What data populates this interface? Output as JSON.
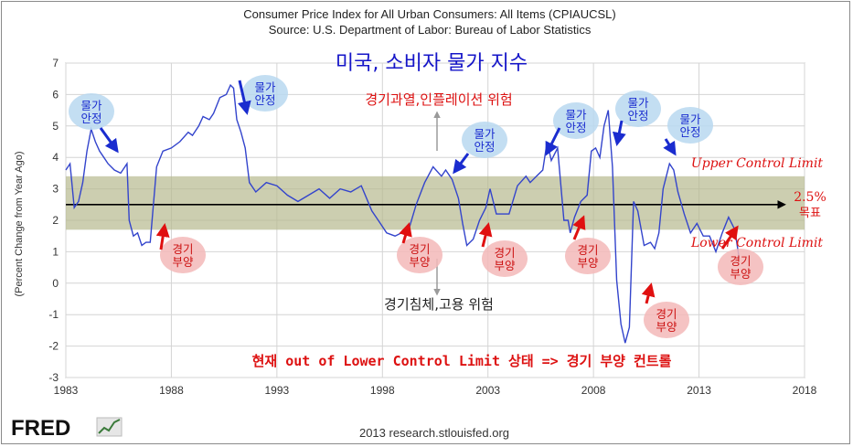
{
  "chart_data": {
    "type": "line",
    "title": "Consumer Price Index for All Urban Consumers: All Items (CPIAUCSL)",
    "subtitle": "Source: U.S. Department of Labor: Bureau of Labor Statistics",
    "ylabel": "(Percent Change from Year Ago)",
    "xlabel": "",
    "ylim": [
      -3,
      7
    ],
    "xlim": [
      1983,
      2018
    ],
    "yticks": [
      "-3",
      "-2",
      "-1",
      "0",
      "1",
      "2",
      "3",
      "4",
      "5",
      "6",
      "7"
    ],
    "xticks": [
      "1983",
      "1988",
      "1993",
      "1998",
      "2003",
      "2008",
      "2013",
      "2018"
    ],
    "grid": true,
    "line_color": "#3344cc",
    "band_color": "#b7b98f",
    "control_band": [
      1.7,
      3.4
    ],
    "target_value": 2.5,
    "series": [
      {
        "x": [
          1983.0,
          1983.2,
          1983.4,
          1983.6,
          1983.8,
          1984.0,
          1984.2,
          1984.4,
          1984.6,
          1984.8,
          1985.0,
          1985.3,
          1985.6,
          1985.9,
          1986.0,
          1986.2,
          1986.4,
          1986.6,
          1986.8,
          1987.0,
          1987.3,
          1987.6,
          1988.0,
          1988.4,
          1988.8,
          1989.0,
          1989.3,
          1989.5,
          1989.8,
          1990.0,
          1990.3,
          1990.6,
          1990.8,
          1990.95,
          1991.1,
          1991.3,
          1991.5,
          1991.7,
          1992.0,
          1992.5,
          1993.0,
          1993.5,
          1994.0,
          1994.5,
          1995.0,
          1995.5,
          1996.0,
          1996.5,
          1997.0,
          1997.5,
          1997.9,
          1998.2,
          1998.6,
          1998.9,
          1999.2,
          1999.6,
          2000.0,
          2000.4,
          2000.8,
          2001.0,
          2001.3,
          2001.6,
          2001.8,
          2002.0,
          2002.3,
          2002.6,
          2002.9,
          2003.1,
          2003.4,
          2003.7,
          2004.0,
          2004.4,
          2004.8,
          2005.0,
          2005.3,
          2005.6,
          2005.8,
          2006.0,
          2006.3,
          2006.6,
          2006.8,
          2006.9,
          2007.1,
          2007.4,
          2007.7,
          2007.9,
          2008.1,
          2008.3,
          2008.5,
          2008.7,
          2008.9,
          2009.1,
          2009.3,
          2009.5,
          2009.7,
          2009.9,
          2010.1,
          2010.4,
          2010.7,
          2010.9,
          2011.1,
          2011.3,
          2011.6,
          2011.8,
          2012.0,
          2012.3,
          2012.6,
          2012.9,
          2013.2,
          2013.5,
          2013.8,
          2014.1,
          2014.4,
          2014.7,
          2014.9
        ],
        "y": [
          3.6,
          3.8,
          2.4,
          2.6,
          3.2,
          4.2,
          4.9,
          4.5,
          4.2,
          4.0,
          3.8,
          3.6,
          3.5,
          3.8,
          2.0,
          1.5,
          1.6,
          1.2,
          1.3,
          1.3,
          3.7,
          4.2,
          4.3,
          4.5,
          4.8,
          4.7,
          5.0,
          5.3,
          5.2,
          5.4,
          5.9,
          6.0,
          6.3,
          6.2,
          5.2,
          4.8,
          4.3,
          3.2,
          2.9,
          3.2,
          3.1,
          2.8,
          2.6,
          2.8,
          3.0,
          2.7,
          3.0,
          2.9,
          3.1,
          2.3,
          1.9,
          1.6,
          1.5,
          1.6,
          1.6,
          2.5,
          3.2,
          3.7,
          3.4,
          3.6,
          3.3,
          2.7,
          1.9,
          1.2,
          1.4,
          2.0,
          2.4,
          3.0,
          2.2,
          2.2,
          2.2,
          3.1,
          3.4,
          3.2,
          3.4,
          3.6,
          4.5,
          3.9,
          4.3,
          2.0,
          2.0,
          1.6,
          2.1,
          2.6,
          2.8,
          4.2,
          4.3,
          4.0,
          5.0,
          5.5,
          3.7,
          0.1,
          -1.3,
          -1.9,
          -1.4,
          2.6,
          2.3,
          1.2,
          1.3,
          1.1,
          1.6,
          3.0,
          3.8,
          3.6,
          2.9,
          2.2,
          1.6,
          1.9,
          1.5,
          1.5,
          1.0,
          1.6,
          2.1,
          1.7,
          0.8
        ]
      }
    ],
    "annotations": {
      "main_title": "미국, 소비자 물가 지수",
      "overheat": "경기과열,인플레이션 위험",
      "recession": "경기침체,고용 위험",
      "upper_limit": "Upper Control Limit",
      "lower_limit": "Lower Control Limit",
      "target": "2.5%",
      "target_sub": "목표",
      "bottom_note": "현재 out of Lower Control Limit 상태 => 경기 부양 컨트롤",
      "stable_label": [
        "물가",
        "안정"
      ],
      "boost_label": [
        "경기",
        "부양"
      ]
    }
  },
  "footer": {
    "logo": "FRED",
    "credit": "2013 research.stlouisfed.org"
  },
  "colors": {
    "blue_bubble": "#b9d8f0",
    "red_bubble": "#f3b8b8",
    "blue_arrow": "#1a2ccf",
    "red_arrow": "#e01010",
    "annotation_red": "#dd1111",
    "title_blue": "#1515c8"
  }
}
